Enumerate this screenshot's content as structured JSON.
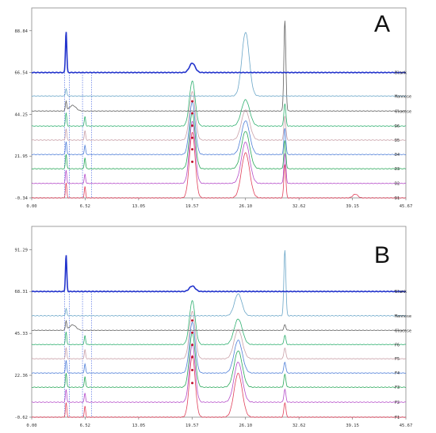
{
  "chart_data": [
    {
      "type": "line",
      "panel": "A",
      "x_ticks": [
        "0.00",
        "6.52",
        "13.05",
        "19.57",
        "26.10",
        "32.62",
        "39.15",
        "45.67"
      ],
      "y_ticks": [
        "-0.34",
        "21.95",
        "44.25",
        "66.54",
        "88.84"
      ],
      "xlim": [
        0,
        45.67
      ],
      "ylim": [
        -0.34,
        101
      ],
      "traces": [
        {
          "label": "D1",
          "color": "#e0405a",
          "offset": -0.34,
          "peaks": [
            [
              4.2,
              8,
              0.08
            ],
            [
              6.5,
              6,
              0.08
            ],
            [
              19.6,
              35,
              0.35
            ],
            [
              26.1,
              24,
              0.5
            ],
            [
              30.9,
              18,
              0.12
            ],
            [
              39.5,
              2,
              0.3
            ]
          ]
        },
        {
          "label": "D2",
          "color": "#b54dc9",
          "offset": 7.4,
          "peaks": [
            [
              4.2,
              7,
              0.08
            ],
            [
              6.5,
              5,
              0.08
            ],
            [
              19.6,
              33,
              0.35
            ],
            [
              26.1,
              22,
              0.5
            ],
            [
              30.9,
              16,
              0.12
            ]
          ]
        },
        {
          "label": "D3",
          "color": "#2aa85a",
          "offset": 15.2,
          "peaks": [
            [
              4.2,
              8,
              0.08
            ],
            [
              6.5,
              6,
              0.08
            ],
            [
              19.6,
              30,
              0.35
            ],
            [
              26.1,
              20,
              0.5
            ],
            [
              30.9,
              15,
              0.12
            ]
          ]
        },
        {
          "label": "D4",
          "color": "#4f7fd8",
          "offset": 22.8,
          "peaks": [
            [
              4.2,
              7,
              0.08
            ],
            [
              6.5,
              5,
              0.08
            ],
            [
              19.6,
              28,
              0.35
            ],
            [
              26.1,
              18,
              0.5
            ],
            [
              30.9,
              14,
              0.12
            ]
          ]
        },
        {
          "label": "D5",
          "color": "#c9a0a8",
          "offset": 30.5,
          "peaks": [
            [
              4.2,
              6,
              0.08
            ],
            [
              6.5,
              5,
              0.08
            ],
            [
              19.6,
              26,
              0.35
            ],
            [
              26.1,
              16,
              0.5
            ],
            [
              30.9,
              13,
              0.12
            ]
          ]
        },
        {
          "label": "D6",
          "color": "#30b070",
          "offset": 38.0,
          "peaks": [
            [
              4.2,
              7,
              0.08
            ],
            [
              6.5,
              5,
              0.08
            ],
            [
              19.6,
              24,
              0.35
            ],
            [
              26.1,
              14,
              0.5
            ],
            [
              30.9,
              12,
              0.12
            ]
          ]
        },
        {
          "label": "Glucose",
          "color": "#606060",
          "offset": 46.0,
          "peaks": [
            [
              4.2,
              5,
              0.08
            ],
            [
              5.0,
              3,
              0.4
            ],
            [
              30.9,
              48,
              0.12
            ]
          ]
        },
        {
          "label": "Mannose",
          "color": "#6aa6c8",
          "offset": 54.0,
          "peaks": [
            [
              4.2,
              4,
              0.08
            ],
            [
              26.1,
              34,
              0.45
            ]
          ]
        },
        {
          "label": "Blank",
          "color": "#2233cc",
          "offset": 66.54,
          "peaks": [
            [
              4.2,
              22,
              0.08
            ],
            [
              19.6,
              5,
              0.35
            ]
          ]
        }
      ]
    },
    {
      "type": "line",
      "panel": "B",
      "x_ticks": [
        "0.00",
        "6.52",
        "13.05",
        "19.57",
        "26.10",
        "32.62",
        "39.15",
        "45.67"
      ],
      "y_ticks": [
        "-0.62",
        "22.36",
        "45.33",
        "68.31",
        "91.29"
      ],
      "xlim": [
        0,
        45.67
      ],
      "ylim": [
        -0.62,
        104
      ],
      "traces": [
        {
          "label": "F1",
          "color": "#e0405a",
          "offset": -0.62,
          "peaks": [
            [
              4.2,
              8,
              0.08
            ],
            [
              6.5,
              6,
              0.08
            ],
            [
              19.6,
              34,
              0.35
            ],
            [
              25.2,
              24,
              0.5
            ],
            [
              30.9,
              8,
              0.12
            ]
          ]
        },
        {
          "label": "F2",
          "color": "#b54dc9",
          "offset": 7.6,
          "peaks": [
            [
              4.2,
              7,
              0.08
            ],
            [
              6.5,
              5,
              0.08
            ],
            [
              19.6,
              32,
              0.35
            ],
            [
              25.2,
              22,
              0.5
            ],
            [
              30.9,
              7,
              0.12
            ]
          ]
        },
        {
          "label": "F3",
          "color": "#2aa85a",
          "offset": 15.8,
          "peaks": [
            [
              4.2,
              8,
              0.08
            ],
            [
              6.5,
              6,
              0.08
            ],
            [
              19.6,
              30,
              0.35
            ],
            [
              25.2,
              20,
              0.5
            ],
            [
              30.9,
              7,
              0.12
            ]
          ]
        },
        {
          "label": "F4",
          "color": "#4f7fd8",
          "offset": 23.6,
          "peaks": [
            [
              4.2,
              7,
              0.08
            ],
            [
              6.5,
              5,
              0.08
            ],
            [
              19.6,
              28,
              0.35
            ],
            [
              25.2,
              18,
              0.5
            ],
            [
              30.9,
              6,
              0.12
            ]
          ]
        },
        {
          "label": "F5",
          "color": "#c9a0a8",
          "offset": 31.4,
          "peaks": [
            [
              4.2,
              6,
              0.08
            ],
            [
              6.5,
              5,
              0.08
            ],
            [
              19.6,
              26,
              0.35
            ],
            [
              25.2,
              16,
              0.5
            ],
            [
              30.9,
              6,
              0.12
            ]
          ]
        },
        {
          "label": "F6",
          "color": "#30b070",
          "offset": 39.2,
          "peaks": [
            [
              4.2,
              7,
              0.08
            ],
            [
              6.5,
              5,
              0.08
            ],
            [
              19.6,
              24,
              0.35
            ],
            [
              25.2,
              14,
              0.5
            ],
            [
              30.9,
              5,
              0.12
            ]
          ]
        },
        {
          "label": "Glucose",
          "color": "#606060",
          "offset": 47.0,
          "peaks": [
            [
              4.2,
              5,
              0.08
            ],
            [
              5.0,
              3,
              0.4
            ],
            [
              30.9,
              3,
              0.12
            ]
          ]
        },
        {
          "label": "Mannose",
          "color": "#6aa6c8",
          "offset": 55.0,
          "peaks": [
            [
              4.2,
              4,
              0.08
            ],
            [
              25.2,
              12,
              0.45
            ],
            [
              30.9,
              36,
              0.12
            ]
          ]
        },
        {
          "label": "Blank",
          "color": "#2233cc",
          "offset": 68.31,
          "peaks": [
            [
              4.2,
              20,
              0.08
            ],
            [
              19.6,
              3,
              0.35
            ]
          ]
        }
      ]
    }
  ]
}
